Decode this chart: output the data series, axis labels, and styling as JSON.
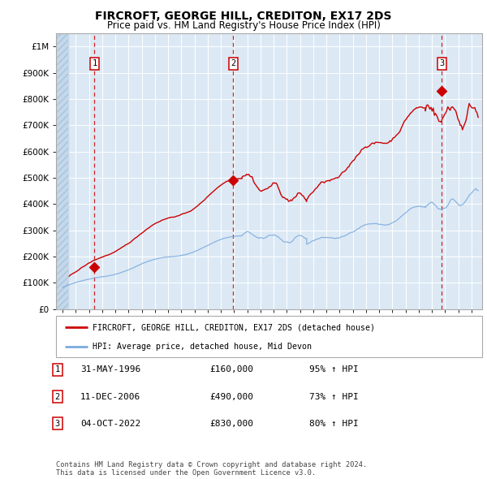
{
  "title": "FIRCROFT, GEORGE HILL, CREDITON, EX17 2DS",
  "subtitle": "Price paid vs. HM Land Registry's House Price Index (HPI)",
  "title_fontsize": 10,
  "subtitle_fontsize": 8.5,
  "background_color": "#ffffff",
  "plot_bg_color": "#dce9f5",
  "grid_color": "#ffffff",
  "xlim": [
    1993.5,
    2025.8
  ],
  "ylim": [
    0,
    1050000
  ],
  "yticks": [
    0,
    100000,
    200000,
    300000,
    400000,
    500000,
    600000,
    700000,
    800000,
    900000,
    1000000
  ],
  "ytick_labels": [
    "£0",
    "£100K",
    "£200K",
    "£300K",
    "£400K",
    "£500K",
    "£600K",
    "£700K",
    "£800K",
    "£900K",
    "£1M"
  ],
  "xticks": [
    1994,
    1995,
    1996,
    1997,
    1998,
    1999,
    2000,
    2001,
    2002,
    2003,
    2004,
    2005,
    2006,
    2007,
    2008,
    2009,
    2010,
    2011,
    2012,
    2013,
    2014,
    2015,
    2016,
    2017,
    2018,
    2019,
    2020,
    2021,
    2022,
    2023,
    2024,
    2025
  ],
  "sale_dates": [
    1996.414,
    2006.942,
    2022.75
  ],
  "sale_prices": [
    160000,
    490000,
    830000
  ],
  "sale_labels": [
    "1",
    "2",
    "3"
  ],
  "sale_date_strs": [
    "31-MAY-1996",
    "11-DEC-2006",
    "04-OCT-2022"
  ],
  "sale_price_strs": [
    "£160,000",
    "£490,000",
    "£830,000"
  ],
  "sale_hpi_strs": [
    "95% ↑ HPI",
    "73% ↑ HPI",
    "80% ↑ HPI"
  ],
  "property_line_color": "#cc0000",
  "hpi_line_color": "#7aaadd",
  "legend_label_property": "FIRCROFT, GEORGE HILL, CREDITON, EX17 2DS (detached house)",
  "legend_label_hpi": "HPI: Average price, detached house, Mid Devon",
  "footer_text": "Contains HM Land Registry data © Crown copyright and database right 2024.\nThis data is licensed under the Open Government Licence v3.0."
}
